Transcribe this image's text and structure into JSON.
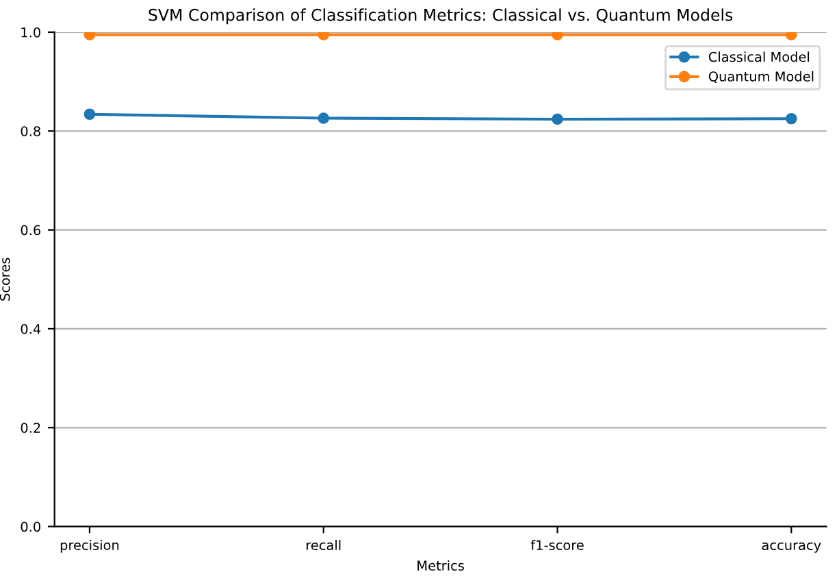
{
  "chart_data": {
    "type": "line",
    "title": "SVM Comparison of Classification Metrics: Classical vs. Quantum Models",
    "xlabel": "Metrics",
    "ylabel": "Scores",
    "categories": [
      "precision",
      "recall",
      "f1-score",
      "accuracy"
    ],
    "series": [
      {
        "name": "Classical Model",
        "color": "#1f77b4",
        "values": [
          0.834,
          0.826,
          0.824,
          0.825
        ]
      },
      {
        "name": "Quantum Model",
        "color": "#ff7f0e",
        "values": [
          0.995,
          0.995,
          0.995,
          0.995
        ]
      }
    ],
    "ylim": [
      0.0,
      1.0
    ],
    "yticks": [
      {
        "value": 0.0,
        "label": "0.0"
      },
      {
        "value": 0.2,
        "label": "0.2"
      },
      {
        "value": 0.4,
        "label": "0.4"
      },
      {
        "value": 0.6,
        "label": "0.6"
      },
      {
        "value": 0.8,
        "label": "0.8"
      },
      {
        "value": 1.0,
        "label": "1.0"
      }
    ],
    "grid": "y",
    "legend": "top right",
    "marker": "circle",
    "line_style": "solid"
  }
}
